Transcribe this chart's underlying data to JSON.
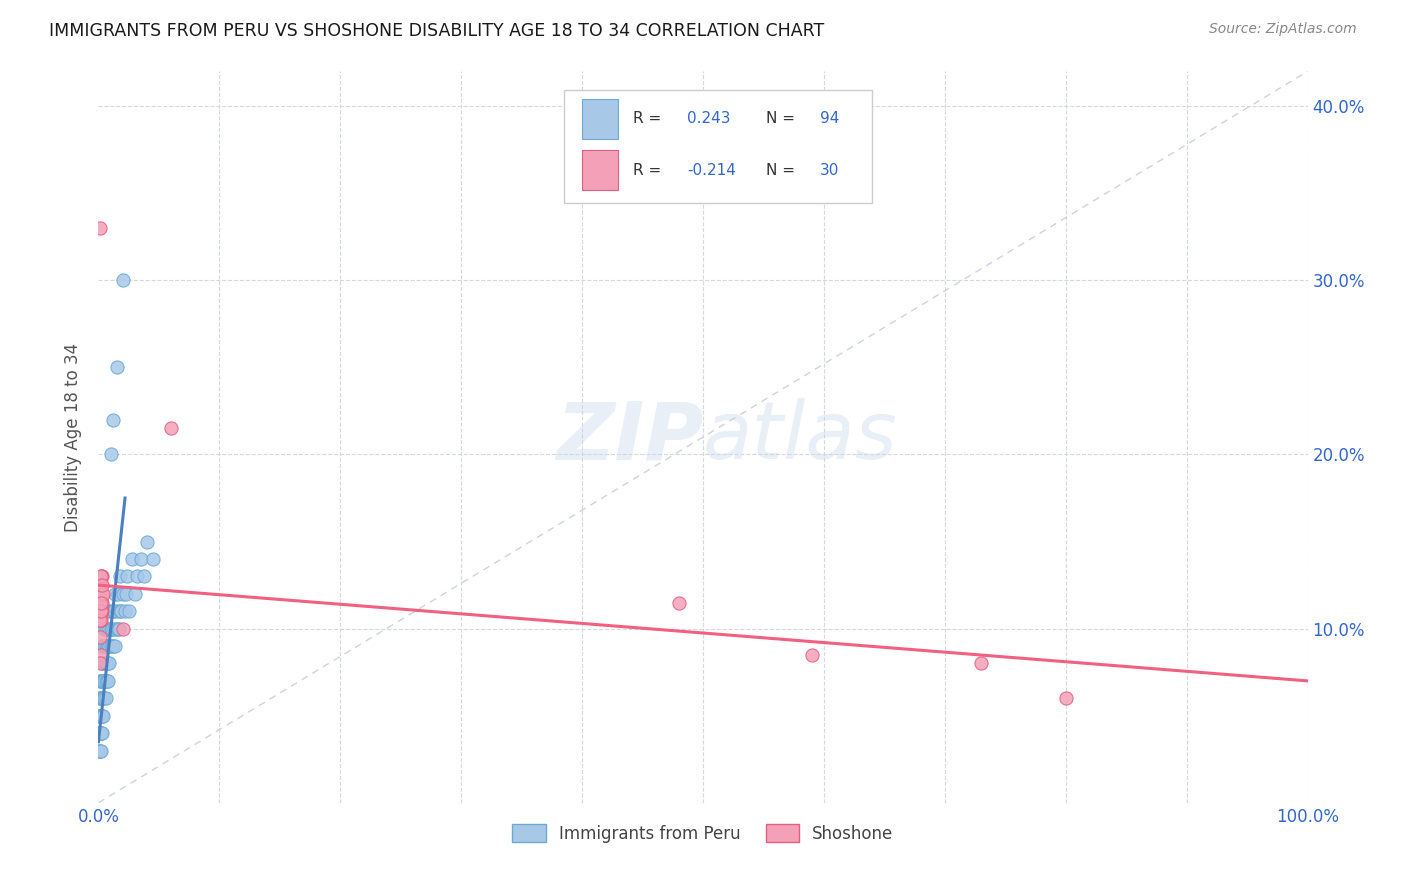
{
  "title": "IMMIGRANTS FROM PERU VS SHOSHONE DISABILITY AGE 18 TO 34 CORRELATION CHART",
  "source": "Source: ZipAtlas.com",
  "ylabel": "Disability Age 18 to 34",
  "xlim": [
    0,
    1.0
  ],
  "ylim": [
    0,
    0.42
  ],
  "color_peru": "#a8c8e8",
  "color_peru_edge": "#6aaad4",
  "color_shoshone": "#f4a0b8",
  "color_shoshone_edge": "#e06080",
  "color_peru_line": "#4a7fc0",
  "color_shoshone_line": "#f06080",
  "color_diag_line": "#c0c8d8",
  "color_axis_blue": "#3366cc",
  "color_grid": "#d0d4dc",
  "series1_label": "Immigrants from Peru",
  "series2_label": "Shoshone",
  "peru_x": [
    0.0,
    0.0,
    0.0,
    0.001,
    0.001,
    0.001,
    0.001,
    0.001,
    0.001,
    0.001,
    0.001,
    0.001,
    0.001,
    0.001,
    0.002,
    0.002,
    0.002,
    0.002,
    0.002,
    0.002,
    0.002,
    0.002,
    0.002,
    0.002,
    0.002,
    0.003,
    0.003,
    0.003,
    0.003,
    0.003,
    0.003,
    0.003,
    0.003,
    0.004,
    0.004,
    0.004,
    0.004,
    0.004,
    0.005,
    0.005,
    0.005,
    0.005,
    0.005,
    0.006,
    0.006,
    0.006,
    0.006,
    0.006,
    0.007,
    0.007,
    0.007,
    0.007,
    0.008,
    0.008,
    0.008,
    0.008,
    0.009,
    0.009,
    0.009,
    0.01,
    0.01,
    0.01,
    0.011,
    0.011,
    0.012,
    0.012,
    0.013,
    0.013,
    0.014,
    0.014,
    0.015,
    0.015,
    0.016,
    0.016,
    0.017,
    0.018,
    0.018,
    0.019,
    0.02,
    0.022,
    0.023,
    0.024,
    0.025,
    0.028,
    0.03,
    0.032,
    0.035,
    0.038,
    0.04,
    0.045,
    0.01,
    0.012,
    0.015,
    0.02
  ],
  "peru_y": [
    0.04,
    0.03,
    0.05,
    0.04,
    0.05,
    0.06,
    0.03,
    0.04,
    0.07,
    0.05,
    0.06,
    0.04,
    0.03,
    0.05,
    0.05,
    0.06,
    0.04,
    0.07,
    0.05,
    0.06,
    0.04,
    0.03,
    0.05,
    0.07,
    0.06,
    0.06,
    0.05,
    0.07,
    0.04,
    0.08,
    0.05,
    0.06,
    0.09,
    0.07,
    0.06,
    0.08,
    0.05,
    0.09,
    0.07,
    0.08,
    0.06,
    0.09,
    0.1,
    0.07,
    0.08,
    0.09,
    0.06,
    0.1,
    0.08,
    0.09,
    0.07,
    0.1,
    0.08,
    0.09,
    0.07,
    0.11,
    0.09,
    0.1,
    0.08,
    0.09,
    0.1,
    0.11,
    0.09,
    0.1,
    0.09,
    0.11,
    0.1,
    0.11,
    0.09,
    0.12,
    0.1,
    0.11,
    0.1,
    0.12,
    0.1,
    0.11,
    0.13,
    0.11,
    0.12,
    0.11,
    0.12,
    0.13,
    0.11,
    0.14,
    0.12,
    0.13,
    0.14,
    0.13,
    0.15,
    0.14,
    0.2,
    0.22,
    0.25,
    0.3
  ],
  "shoshone_x": [
    0.001,
    0.002,
    0.003,
    0.002,
    0.001,
    0.003,
    0.002,
    0.001,
    0.002,
    0.001,
    0.003,
    0.002,
    0.001,
    0.003,
    0.002,
    0.001,
    0.004,
    0.002,
    0.003,
    0.002,
    0.06,
    0.02,
    0.48,
    0.59,
    0.73,
    0.001,
    0.002,
    0.001,
    0.8,
    0.001
  ],
  "shoshone_y": [
    0.125,
    0.115,
    0.13,
    0.105,
    0.12,
    0.11,
    0.125,
    0.115,
    0.13,
    0.105,
    0.12,
    0.11,
    0.125,
    0.115,
    0.13,
    0.105,
    0.12,
    0.11,
    0.125,
    0.115,
    0.215,
    0.1,
    0.115,
    0.085,
    0.08,
    0.095,
    0.085,
    0.08,
    0.06,
    0.33
  ],
  "peru_line_x": [
    0.0,
    0.022
  ],
  "peru_line_y": [
    0.035,
    0.175
  ],
  "shoshone_line_x": [
    0.0,
    1.0
  ],
  "shoshone_line_y": [
    0.125,
    0.07
  ]
}
